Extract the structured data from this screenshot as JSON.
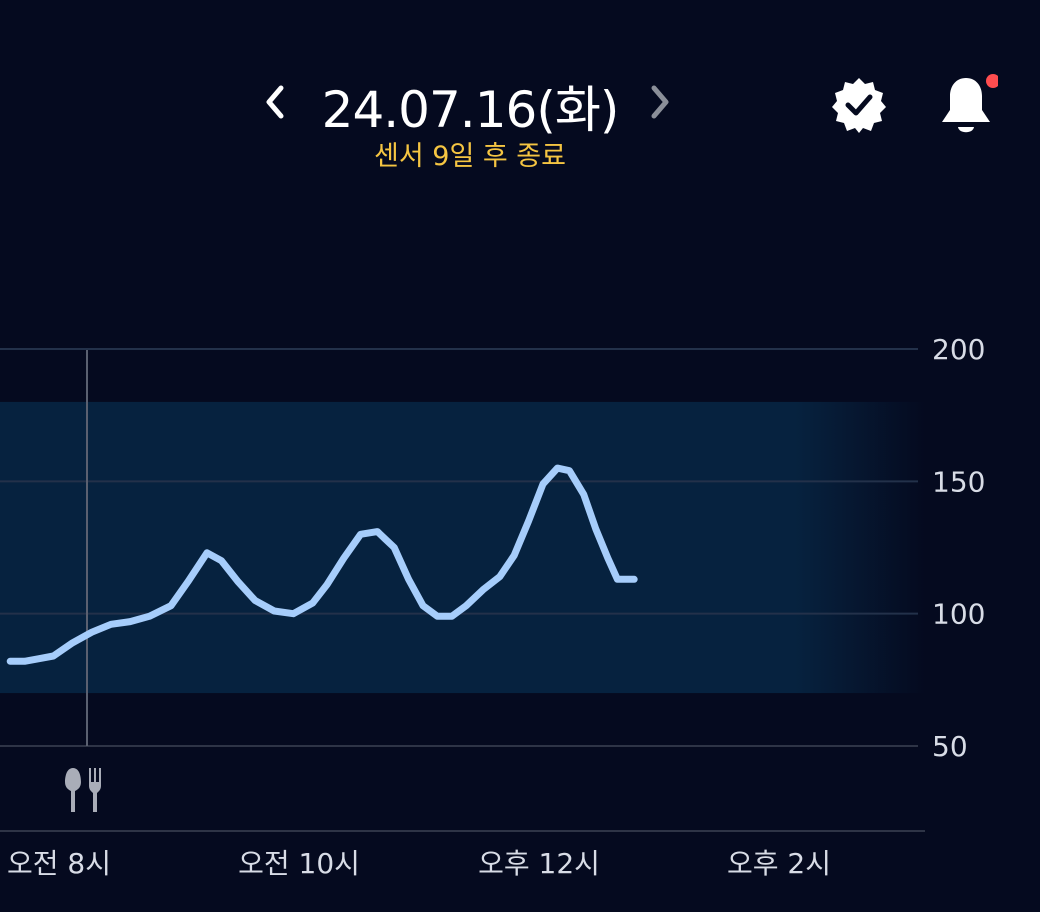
{
  "header": {
    "date": "24.07.16(화)",
    "sensor_status": "센서 9일 후 종료",
    "prev_icon": "chevron-left-icon",
    "next_icon": "chevron-right-icon",
    "verified_icon": "verified-badge-icon",
    "notification_icon": "bell-icon",
    "notification_dot_color": "#ff4d4f",
    "sensor_status_color": "#f5c542"
  },
  "meal_marker": {
    "icon": "fork-knife-icon",
    "time": "오전 8시"
  },
  "chart_data": {
    "type": "line",
    "title": "",
    "xlabel": "",
    "ylabel": "",
    "y_ticks": [
      "200",
      "150",
      "100",
      "50"
    ],
    "y_tick_values": [
      200,
      150,
      100,
      50
    ],
    "x_ticks": [
      "오전 8시",
      "오전 10시",
      "오후 12시",
      "오후 2시"
    ],
    "x_tick_values": [
      8,
      10,
      12,
      14
    ],
    "target_range": [
      70,
      180
    ],
    "series": [
      {
        "color": "#a6cdfb",
        "x": [
          7.36,
          7.48,
          7.6,
          7.72,
          7.88,
          8.04,
          8.2,
          8.36,
          8.52,
          8.7,
          8.84,
          9.0,
          9.12,
          9.26,
          9.4,
          9.56,
          9.72,
          9.88,
          10.0,
          10.14,
          10.28,
          10.42,
          10.56,
          10.68,
          10.8,
          10.92,
          11.04,
          11.16,
          11.3,
          11.44,
          11.56,
          11.68,
          11.8,
          11.92,
          12.02,
          12.14,
          12.24,
          12.34,
          12.42,
          12.5,
          12.56
        ],
        "values": [
          82,
          82,
          83,
          84,
          89,
          93,
          96,
          97,
          99,
          103,
          112,
          123,
          120,
          112,
          105,
          101,
          100,
          104,
          111,
          121,
          130,
          131,
          125,
          113,
          103,
          99,
          99,
          103,
          109,
          114,
          122,
          135,
          149,
          155,
          154,
          145,
          132,
          121,
          113,
          113,
          113
        ]
      }
    ],
    "ylim": [
      40,
      220
    ],
    "grid": true
  }
}
